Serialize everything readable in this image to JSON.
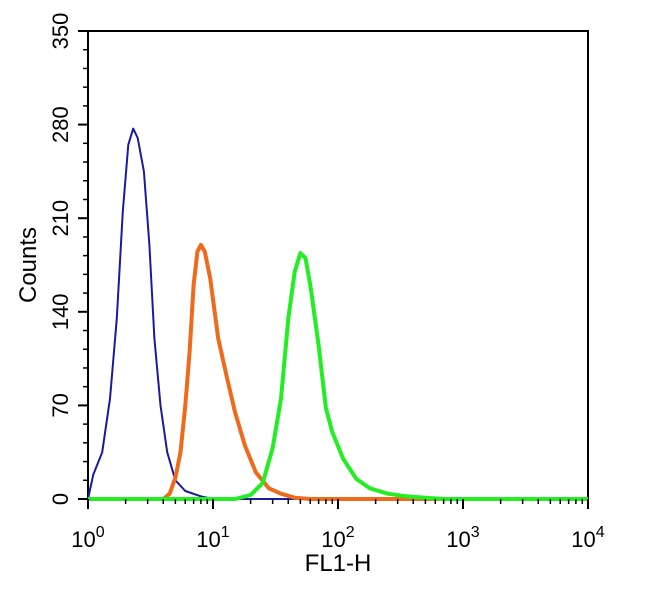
{
  "chart_data": {
    "type": "line",
    "xlabel": "FL1-H",
    "ylabel": "Counts",
    "x_scale": "log",
    "xlim": [
      1,
      10000
    ],
    "ylim": [
      0,
      350
    ],
    "x_ticks": [
      {
        "value": 1,
        "base": "10",
        "exp": "0"
      },
      {
        "value": 10,
        "base": "10",
        "exp": "1"
      },
      {
        "value": 100,
        "base": "10",
        "exp": "2"
      },
      {
        "value": 1000,
        "base": "10",
        "exp": "3"
      },
      {
        "value": 10000,
        "base": "10",
        "exp": "4"
      }
    ],
    "y_ticks": [
      {
        "value": 0,
        "label": "0"
      },
      {
        "value": 70,
        "label": "70"
      },
      {
        "value": 140,
        "label": "140"
      },
      {
        "value": 210,
        "label": "210"
      },
      {
        "value": 280,
        "label": "280"
      },
      {
        "value": 350,
        "label": "350"
      }
    ],
    "grid": false,
    "series": [
      {
        "color": "#1a1aa0",
        "points": [
          [
            1,
            0
          ],
          [
            1.1,
            18
          ],
          [
            1.3,
            35
          ],
          [
            1.5,
            75
          ],
          [
            1.7,
            135
          ],
          [
            1.9,
            215
          ],
          [
            2.1,
            265
          ],
          [
            2.3,
            277
          ],
          [
            2.5,
            270
          ],
          [
            2.8,
            245
          ],
          [
            3.1,
            190
          ],
          [
            3.4,
            120
          ],
          [
            3.8,
            70
          ],
          [
            4.3,
            35
          ],
          [
            5,
            14
          ],
          [
            6,
            6
          ],
          [
            8,
            2
          ],
          [
            10,
            0
          ],
          [
            10000,
            0
          ]
        ]
      },
      {
        "color": "#f06a1c",
        "points": [
          [
            1,
            0
          ],
          [
            4,
            0
          ],
          [
            4.5,
            4
          ],
          [
            5,
            16
          ],
          [
            5.5,
            35
          ],
          [
            6,
            70
          ],
          [
            6.5,
            110
          ],
          [
            7,
            160
          ],
          [
            7.5,
            185
          ],
          [
            8,
            190
          ],
          [
            8.6,
            185
          ],
          [
            9.5,
            165
          ],
          [
            11,
            120
          ],
          [
            13,
            90
          ],
          [
            15,
            65
          ],
          [
            18,
            40
          ],
          [
            22,
            20
          ],
          [
            28,
            8
          ],
          [
            35,
            4
          ],
          [
            45,
            1
          ],
          [
            60,
            0
          ],
          [
            10000,
            0
          ]
        ]
      },
      {
        "color": "#22ee22",
        "points": [
          [
            1,
            0
          ],
          [
            15,
            0
          ],
          [
            20,
            3
          ],
          [
            25,
            12
          ],
          [
            30,
            38
          ],
          [
            35,
            75
          ],
          [
            40,
            135
          ],
          [
            45,
            170
          ],
          [
            50,
            184
          ],
          [
            55,
            180
          ],
          [
            60,
            160
          ],
          [
            70,
            115
          ],
          [
            80,
            68
          ],
          [
            90,
            50
          ],
          [
            110,
            30
          ],
          [
            140,
            15
          ],
          [
            180,
            8
          ],
          [
            250,
            4
          ],
          [
            350,
            2
          ],
          [
            500,
            1
          ],
          [
            700,
            0
          ],
          [
            10000,
            0
          ]
        ]
      }
    ]
  }
}
